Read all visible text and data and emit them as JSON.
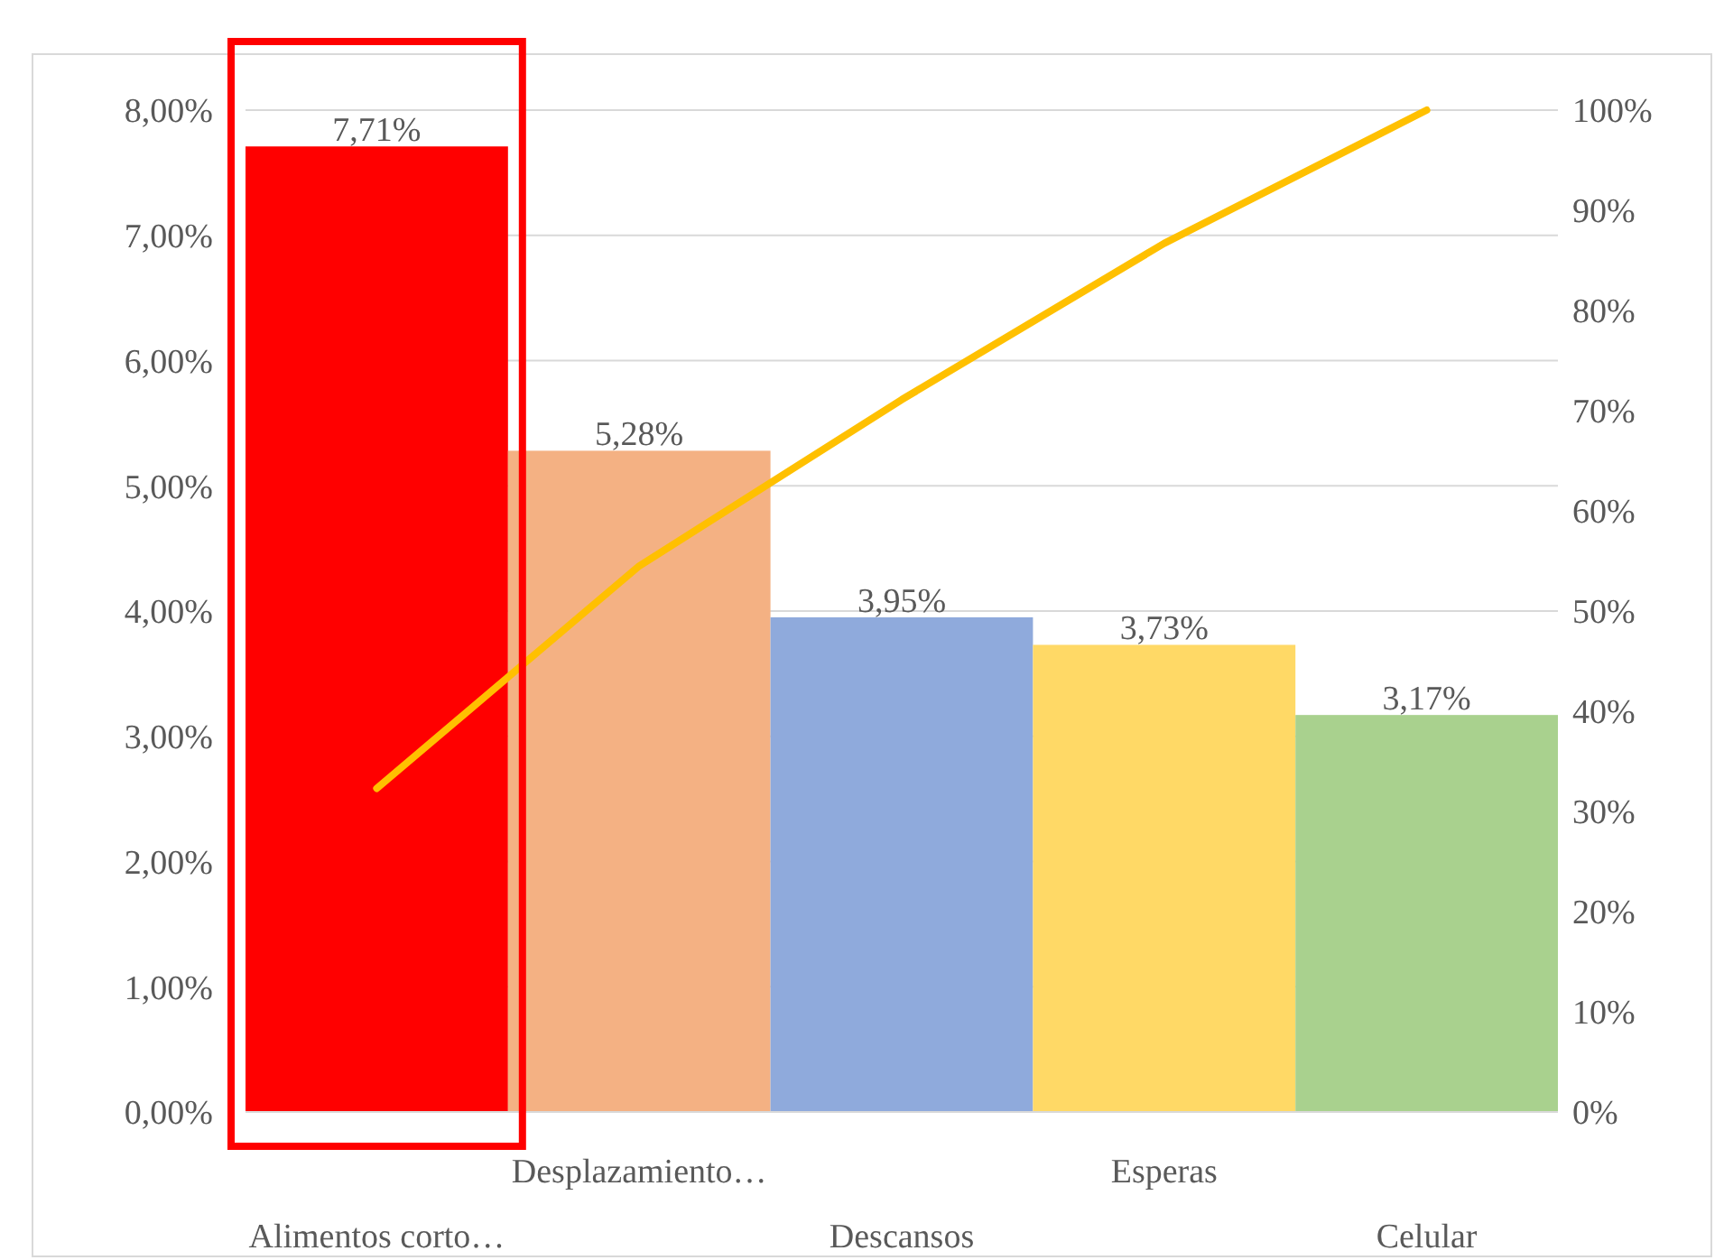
{
  "chart_data": {
    "type": "bar",
    "categories": [
      "Alimentos corto…",
      "Desplazamiento…",
      "Descansos",
      "Esperas",
      "Celular"
    ],
    "series": [
      {
        "colors": [
          "#ff0000",
          "#f4b183",
          "#8faadc",
          "#ffd966",
          "#a9d18e"
        ],
        "values": [
          7.71,
          5.28,
          3.95,
          3.73,
          3.17
        ],
        "value_labels": [
          "7,71%",
          "5,28%",
          "3,95%",
          "3,73%",
          "3,17%"
        ]
      },
      {
        "type": "line",
        "axis": "y2",
        "color": "#ffc000",
        "values": [
          32.3,
          54.5,
          71.1,
          86.7,
          100
        ]
      }
    ],
    "ylim": [
      0,
      8
    ],
    "yticks": [
      {
        "value": 0,
        "label": "0,00%"
      },
      {
        "value": 1,
        "label": "1,00%"
      },
      {
        "value": 2,
        "label": "2,00%"
      },
      {
        "value": 3,
        "label": "3,00%"
      },
      {
        "value": 4,
        "label": "4,00%"
      },
      {
        "value": 5,
        "label": "5,00%"
      },
      {
        "value": 6,
        "label": "6,00%"
      },
      {
        "value": 7,
        "label": "7,00%"
      },
      {
        "value": 8,
        "label": "8,00%"
      }
    ],
    "y2lim": [
      0,
      100
    ],
    "y2ticks": [
      {
        "value": 0,
        "label": "0%"
      },
      {
        "value": 10,
        "label": "10%"
      },
      {
        "value": 20,
        "label": "20%"
      },
      {
        "value": 30,
        "label": "30%"
      },
      {
        "value": 40,
        "label": "40%"
      },
      {
        "value": 50,
        "label": "50%"
      },
      {
        "value": 60,
        "label": "60%"
      },
      {
        "value": 70,
        "label": "70%"
      },
      {
        "value": 80,
        "label": "80%"
      },
      {
        "value": 90,
        "label": "90%"
      },
      {
        "value": 100,
        "label": "100%"
      }
    ],
    "grid": "y",
    "marker": "none",
    "line_style": "solid"
  }
}
